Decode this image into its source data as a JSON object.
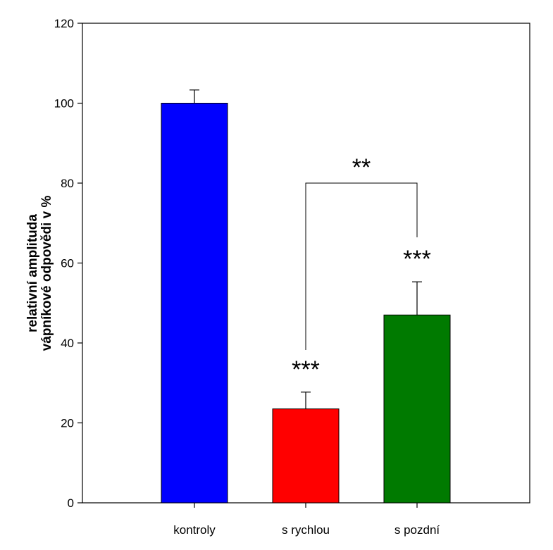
{
  "chart_data": {
    "type": "bar",
    "categories": [
      "kontroly",
      "s rychlou",
      "s pozdní"
    ],
    "values": [
      100,
      23.5,
      47
    ],
    "errors": [
      3.3,
      4.2,
      8.3
    ],
    "colors": [
      "#0000ff",
      "#ff0000",
      "#007a00"
    ],
    "ylabel_lines": [
      "relativní amplituda",
      "vápníkové odpovědi v %"
    ],
    "ylim": [
      0,
      120
    ],
    "yticks": [
      0,
      20,
      40,
      60,
      80,
      100,
      120
    ],
    "significance": [
      {
        "category_index": 1,
        "label": "***"
      },
      {
        "category_index": 2,
        "label": "***"
      }
    ],
    "bracket": {
      "from_index": 1,
      "to_index": 2,
      "level": 80,
      "label": "**"
    },
    "grid": false,
    "legend": "none"
  }
}
